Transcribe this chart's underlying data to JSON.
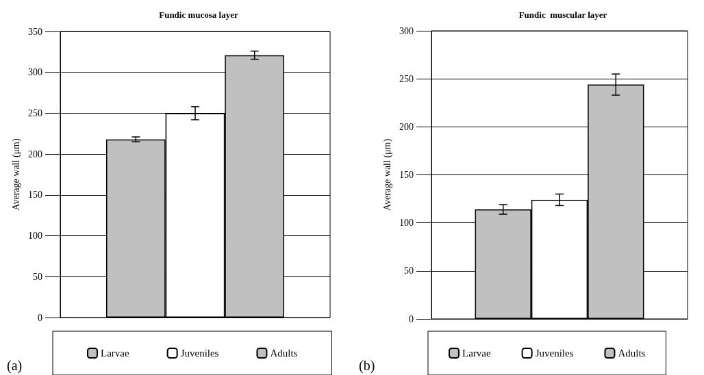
{
  "chart_data": [
    {
      "type": "bar",
      "title": "Fundic mucosa layer",
      "ylabel": "Average wall (μm)",
      "categories": [
        null
      ],
      "series": [
        {
          "name": "Larvae",
          "color": "#c0c0c0",
          "values": [
            218
          ],
          "errors": [
            3
          ]
        },
        {
          "name": "Juveniles",
          "color": "#ffffff",
          "values": [
            250
          ],
          "errors": [
            8
          ]
        },
        {
          "name": "Adults",
          "color": "#c0c0c0",
          "values": [
            321
          ],
          "errors": [
            5
          ]
        }
      ],
      "ylim": [
        0,
        350
      ],
      "yticks": [
        0,
        50,
        100,
        150,
        200,
        250,
        300,
        350
      ],
      "grid": "y",
      "legend": "bottom",
      "annotations": [
        "(a)"
      ]
    },
    {
      "type": "bar",
      "title": "Fundic  muscular layer",
      "ylabel": "Average wall (μm)",
      "categories": [
        null
      ],
      "series": [
        {
          "name": "Larvae",
          "color": "#c0c0c0",
          "values": [
            114
          ],
          "errors": [
            5
          ]
        },
        {
          "name": "Juveniles",
          "color": "#ffffff",
          "values": [
            124
          ],
          "errors": [
            6
          ]
        },
        {
          "name": "Adults",
          "color": "#c0c0c0",
          "values": [
            244
          ],
          "errors": [
            11
          ]
        }
      ],
      "ylim": [
        0,
        300
      ],
      "yticks": [
        0,
        50,
        100,
        150,
        200,
        250,
        300
      ],
      "grid": "y",
      "legend": "bottom",
      "annotations": [
        "(b)"
      ]
    }
  ]
}
